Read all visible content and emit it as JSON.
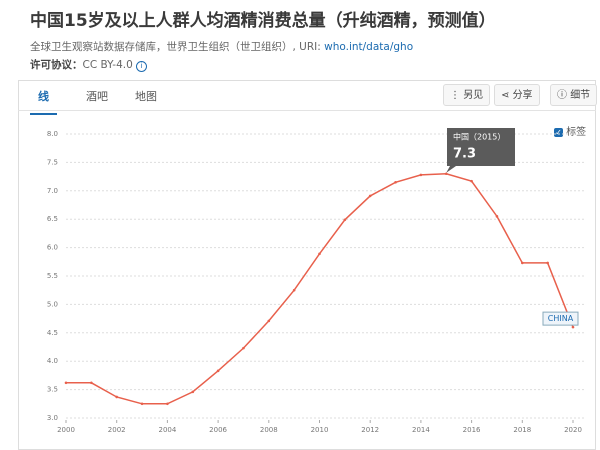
{
  "header": {
    "title": "中国15岁及以上人群人均酒精消费总量（升纯酒精，预测值）",
    "source": "全球卫生观察站数据存储库，世界卫生组织（世卫组织）, URI:",
    "source_link": "who.int/data/gho",
    "license_label": "许可协议：",
    "license": "CC BY-4.0"
  },
  "tabs": [
    "线",
    "酒吧",
    "地图"
  ],
  "buttons": [
    "另见",
    "分享",
    "细节"
  ],
  "labels_toggle": "标签",
  "tooltip": {
    "title": "中国（2015）"
  },
  "chart_data": {
    "type": "line",
    "x": [
      2000,
      2001,
      2002,
      2003,
      2004,
      2005,
      2006,
      2007,
      2008,
      2009,
      2010,
      2011,
      2012,
      2013,
      2014,
      2015,
      2016,
      2017,
      2018,
      2019,
      2020
    ],
    "series": [
      {
        "name": "CHINA",
        "color": "#e8604c",
        "values": [
          3.62,
          3.62,
          3.37,
          3.25,
          3.25,
          3.46,
          3.83,
          4.23,
          4.71,
          5.25,
          5.89,
          6.49,
          6.91,
          7.15,
          7.28,
          7.3,
          7.17,
          6.55,
          5.73,
          5.73,
          4.6
        ]
      }
    ],
    "xlim": [
      2000,
      2020
    ],
    "ylim": [
      3,
      8
    ],
    "xticks": [
      2000,
      2002,
      2004,
      2006,
      2008,
      2010,
      2012,
      2014,
      2016,
      2018,
      2020
    ],
    "yticks": [
      {
        "value": 3,
        "label": "3.0"
      },
      3.5,
      {
        "value": 4,
        "label": "4.0"
      },
      4.5,
      {
        "value": 5,
        "label": "5.0"
      },
      5.5,
      {
        "value": 6,
        "label": "6.0"
      },
      6.5,
      {
        "value": 7,
        "label": "7.0"
      },
      7.5,
      {
        "value": 8,
        "label": "8.0"
      }
    ],
    "grid": true
  }
}
